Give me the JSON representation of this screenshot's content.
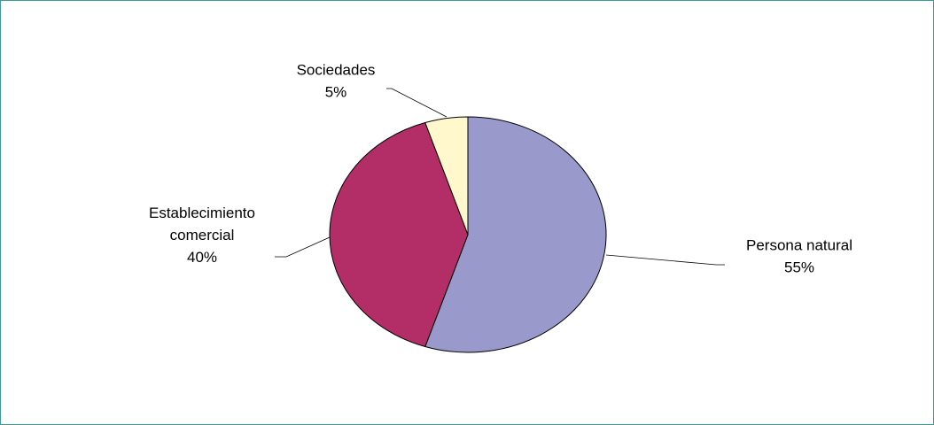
{
  "chart_data": {
    "type": "pie",
    "slices": [
      {
        "label": "Persona natural",
        "label_lines": [
          "Persona natural"
        ],
        "value": 55,
        "value_label": "55%",
        "color": "#9999cc"
      },
      {
        "label": "Establecimiento comercial",
        "label_lines": [
          "Establecimiento",
          "comercial"
        ],
        "value": 40,
        "value_label": "40%",
        "color": "#b32e66"
      },
      {
        "label": "Sociedades",
        "label_lines": [
          "Sociedades"
        ],
        "value": 5,
        "value_label": "5%",
        "color": "#fff8cc"
      }
    ],
    "start_angle": "12 o'clock",
    "direction": "clockwise",
    "legend": "none",
    "data_labels": "outside with leader lines"
  },
  "colors": {
    "frame_border": "#3d9a95",
    "background": "#ffffff"
  }
}
